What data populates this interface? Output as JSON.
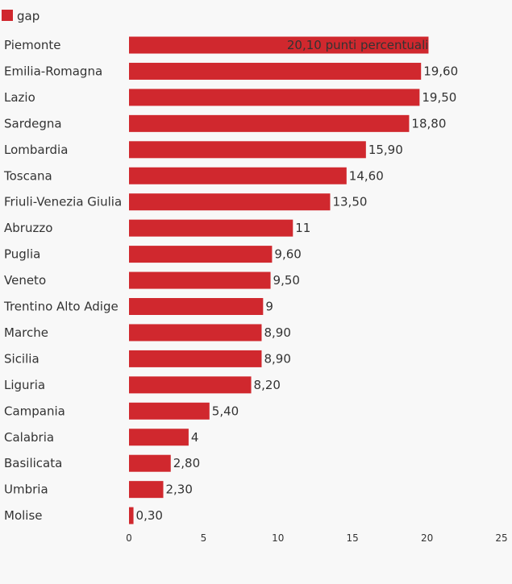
{
  "chart_data": {
    "type": "bar",
    "orientation": "horizontal",
    "categories": [
      "Piemonte",
      "Emilia-Romagna",
      "Lazio",
      "Sardegna",
      "Lombardia",
      "Toscana",
      "Friuli-Venezia Giulia",
      "Abruzzo",
      "Puglia",
      "Veneto",
      "Trentino Alto Adige",
      "Marche",
      "Sicilia",
      "Liguria",
      "Campania",
      "Calabria",
      "Basilicata",
      "Umbria",
      "Molise"
    ],
    "series": [
      {
        "name": "gap",
        "color": "#d0282e",
        "values": [
          20.1,
          19.6,
          19.5,
          18.8,
          15.9,
          14.6,
          13.5,
          11,
          9.6,
          9.5,
          9,
          8.9,
          8.9,
          8.2,
          5.4,
          4,
          2.8,
          2.3,
          0.3
        ],
        "labels": [
          "20,10 punti percentuali",
          "19,60",
          "19,50",
          "18,80",
          "15,90",
          "14,60",
          "13,50",
          "11",
          "9,60",
          "9,50",
          "9",
          "8,90",
          "8,90",
          "8,20",
          "5,40",
          "4",
          "2,80",
          "2,30",
          "0,30"
        ]
      }
    ],
    "xlim": [
      0,
      25
    ],
    "xticks": [
      0,
      5,
      10,
      15,
      20,
      25
    ],
    "xtick_labels": [
      "0",
      "5",
      "10",
      "15",
      "20",
      "25"
    ],
    "grid": false,
    "legend_position": "top-left",
    "first_label_inside_bar": true
  }
}
